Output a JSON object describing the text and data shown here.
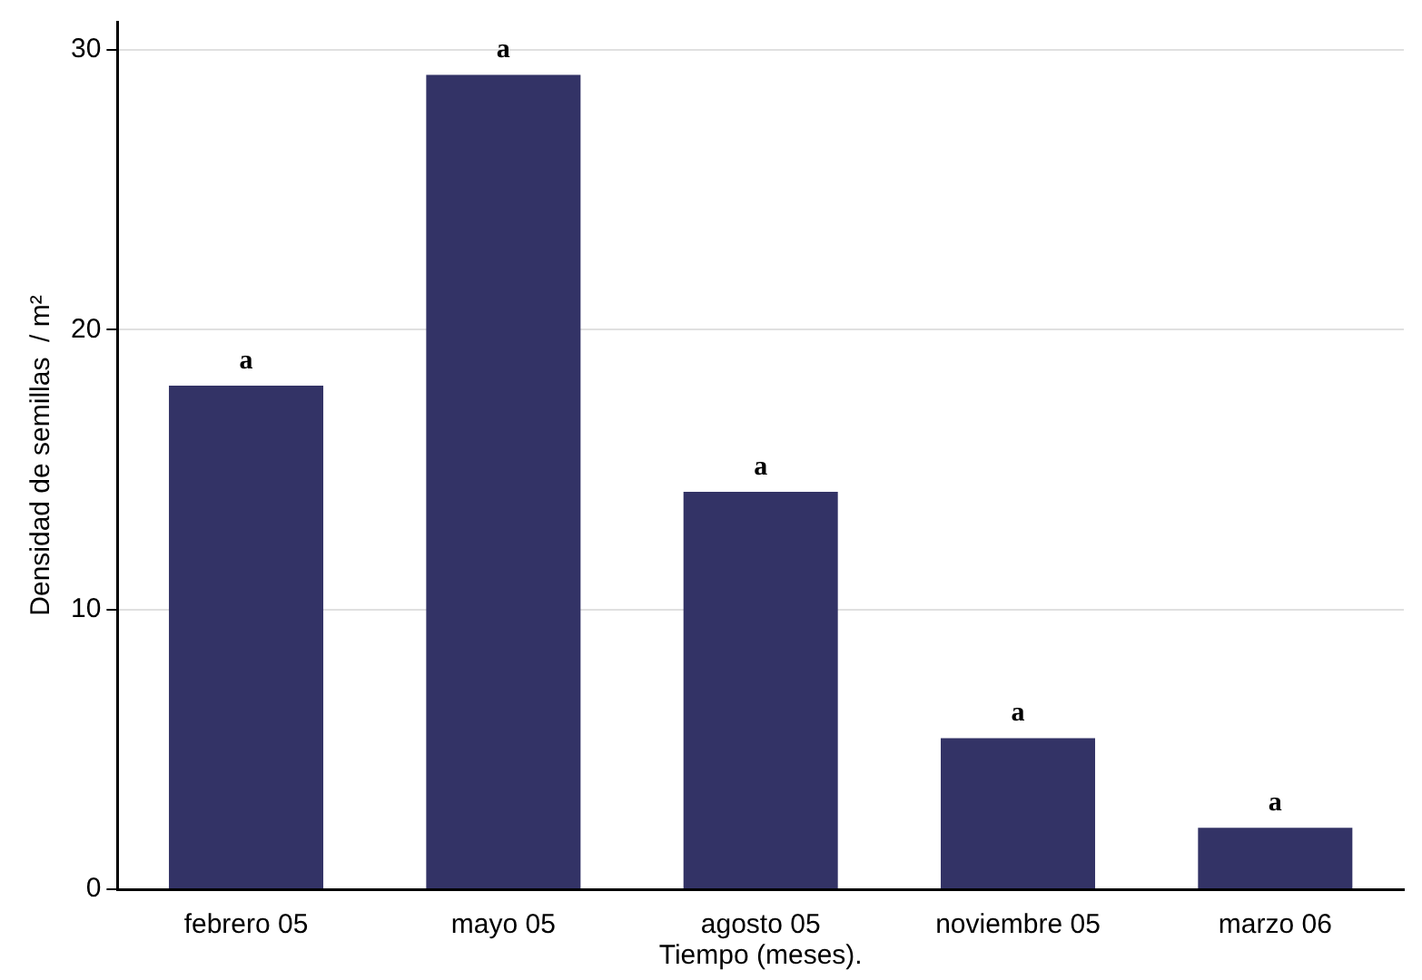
{
  "chart_data": {
    "type": "bar",
    "xlabel": "Tiempo (meses).",
    "ylabel": "Densidad de semillas  / m²",
    "categories": [
      "febrero 05",
      "mayo 05",
      "agosto 05",
      "noviembre 05",
      "marzo 06"
    ],
    "values": [
      18,
      29.1,
      14.2,
      5.4,
      2.2
    ],
    "color": "#333366",
    "value_labels": [
      "a",
      "a",
      "a",
      "a",
      "a"
    ],
    "ylim": [
      0,
      31
    ],
    "yticks": [
      0,
      10,
      20,
      30
    ],
    "grid": "y",
    "legend": false
  }
}
